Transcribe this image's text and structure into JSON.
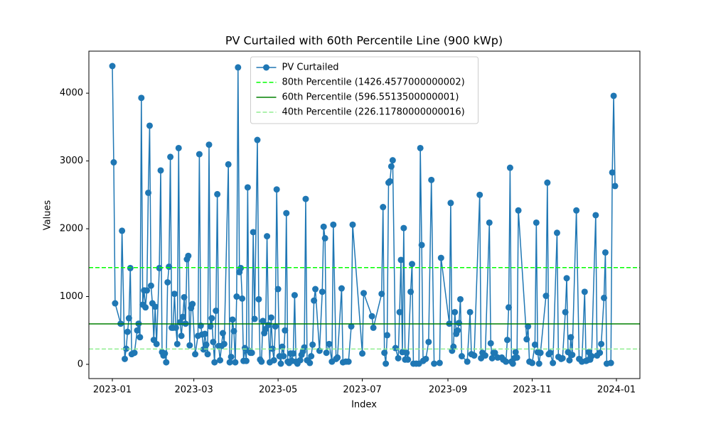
{
  "chart_data": {
    "type": "line",
    "title": "PV Curtailed with 60th Percentile Line (900 kWp)",
    "x_label": "Index",
    "y_label": "Values",
    "x": [
      "2023-01-01",
      "2023-01-02",
      "2023-01-03",
      "2023-01-07",
      "2023-01-08",
      "2023-01-10",
      "2023-01-11",
      "2023-01-12",
      "2023-01-13",
      "2023-01-14",
      "2023-01-15",
      "2023-01-17",
      "2023-01-19",
      "2023-01-20",
      "2023-01-21",
      "2023-01-22",
      "2023-01-23",
      "2023-01-24",
      "2023-01-25",
      "2023-01-26",
      "2023-01-27",
      "2023-01-28",
      "2023-01-29",
      "2023-01-30",
      "2023-01-31",
      "2023-02-01",
      "2023-02-02",
      "2023-02-04",
      "2023-02-05",
      "2023-02-06",
      "2023-02-07",
      "2023-02-08",
      "2023-02-09",
      "2023-02-10",
      "2023-02-11",
      "2023-02-12",
      "2023-02-13",
      "2023-02-14",
      "2023-02-15",
      "2023-02-16",
      "2023-02-17",
      "2023-02-18",
      "2023-02-19",
      "2023-02-20",
      "2023-02-21",
      "2023-02-22",
      "2023-02-23",
      "2023-02-24",
      "2023-02-25",
      "2023-02-26",
      "2023-02-27",
      "2023-02-28",
      "2023-03-02",
      "2023-03-04",
      "2023-03-05",
      "2023-03-06",
      "2023-03-07",
      "2023-03-08",
      "2023-03-09",
      "2023-03-10",
      "2023-03-11",
      "2023-03-12",
      "2023-03-13",
      "2023-03-14",
      "2023-03-15",
      "2023-03-16",
      "2023-03-17",
      "2023-03-18",
      "2023-03-19",
      "2023-03-20",
      "2023-03-21",
      "2023-03-22",
      "2023-03-23",
      "2023-03-26",
      "2023-03-27",
      "2023-03-28",
      "2023-03-29",
      "2023-03-30",
      "2023-03-31",
      "2023-04-01",
      "2023-04-02",
      "2023-04-03",
      "2023-04-04",
      "2023-04-05",
      "2023-04-06",
      "2023-04-07",
      "2023-04-08",
      "2023-04-09",
      "2023-04-10",
      "2023-04-11",
      "2023-04-12",
      "2023-04-13",
      "2023-04-14",
      "2023-04-16",
      "2023-04-17",
      "2023-04-18",
      "2023-04-19",
      "2023-04-20",
      "2023-04-21",
      "2023-04-22",
      "2023-04-23",
      "2023-04-24",
      "2023-04-25",
      "2023-04-26",
      "2023-04-27",
      "2023-04-28",
      "2023-04-29",
      "2023-04-30",
      "2023-05-01",
      "2023-05-02",
      "2023-05-03",
      "2023-05-04",
      "2023-05-05",
      "2023-05-06",
      "2023-05-07",
      "2023-05-08",
      "2023-05-09",
      "2023-05-10",
      "2023-05-11",
      "2023-05-12",
      "2023-05-13",
      "2023-05-14",
      "2023-05-15",
      "2023-05-17",
      "2023-05-18",
      "2023-05-19",
      "2023-05-20",
      "2023-05-21",
      "2023-05-22",
      "2023-05-24",
      "2023-05-25",
      "2023-05-26",
      "2023-05-27",
      "2023-05-28",
      "2023-05-31",
      "2023-06-02",
      "2023-06-03",
      "2023-06-04",
      "2023-06-05",
      "2023-06-07",
      "2023-06-09",
      "2023-06-10",
      "2023-06-12",
      "2023-06-13",
      "2023-06-16",
      "2023-06-17",
      "2023-06-19",
      "2023-06-21",
      "2023-06-23",
      "2023-06-24",
      "2023-07-01",
      "2023-07-02",
      "2023-07-08",
      "2023-07-09",
      "2023-07-15",
      "2023-07-16",
      "2023-07-17",
      "2023-07-18",
      "2023-07-19",
      "2023-07-20",
      "2023-07-21",
      "2023-07-22",
      "2023-07-23",
      "2023-07-25",
      "2023-07-27",
      "2023-07-28",
      "2023-07-29",
      "2023-07-30",
      "2023-07-31",
      "2023-08-01",
      "2023-08-02",
      "2023-08-03",
      "2023-08-05",
      "2023-08-06",
      "2023-08-07",
      "2023-08-09",
      "2023-08-11",
      "2023-08-12",
      "2023-08-13",
      "2023-08-14",
      "2023-08-16",
      "2023-08-18",
      "2023-08-20",
      "2023-08-22",
      "2023-08-26",
      "2023-08-27",
      "2023-09-02",
      "2023-09-03",
      "2023-09-04",
      "2023-09-05",
      "2023-09-06",
      "2023-09-07",
      "2023-09-08",
      "2023-09-09",
      "2023-09-10",
      "2023-09-11",
      "2023-09-15",
      "2023-09-17",
      "2023-09-18",
      "2023-09-20",
      "2023-09-24",
      "2023-09-25",
      "2023-09-26",
      "2023-09-28",
      "2023-10-01",
      "2023-10-02",
      "2023-10-03",
      "2023-10-04",
      "2023-10-05",
      "2023-10-07",
      "2023-10-10",
      "2023-10-11",
      "2023-10-13",
      "2023-10-14",
      "2023-10-15",
      "2023-10-16",
      "2023-10-17",
      "2023-10-18",
      "2023-10-19",
      "2023-10-20",
      "2023-10-21",
      "2023-10-22",
      "2023-10-28",
      "2023-10-29",
      "2023-10-30",
      "2023-11-01",
      "2023-11-03",
      "2023-11-04",
      "2023-11-05",
      "2023-11-06",
      "2023-11-07",
      "2023-11-11",
      "2023-11-12",
      "2023-11-13",
      "2023-11-14",
      "2023-11-16",
      "2023-11-19",
      "2023-11-20",
      "2023-11-22",
      "2023-11-23",
      "2023-11-25",
      "2023-11-26",
      "2023-11-27",
      "2023-11-28",
      "2023-11-29",
      "2023-11-30",
      "2023-12-03",
      "2023-12-05",
      "2023-12-07",
      "2023-12-09",
      "2023-12-10",
      "2023-12-11",
      "2023-12-12",
      "2023-12-13",
      "2023-12-14",
      "2023-12-17",
      "2023-12-18",
      "2023-12-20",
      "2023-12-21",
      "2023-12-23",
      "2023-12-24",
      "2023-12-25",
      "2023-12-28",
      "2023-12-29",
      "2023-12-30",
      "2023-12-31"
    ],
    "series": [
      {
        "name": "PV Curtailed",
        "color": "#1f77b4",
        "values": [
          4400,
          2980,
          900,
          600,
          1970,
          80,
          230,
          480,
          680,
          1420,
          150,
          170,
          500,
          600,
          400,
          3930,
          880,
          1090,
          840,
          1090,
          2530,
          3520,
          1160,
          900,
          360,
          850,
          300,
          1420,
          2860,
          180,
          130,
          160,
          30,
          1210,
          1440,
          3060,
          540,
          540,
          1040,
          540,
          300,
          3190,
          620,
          420,
          700,
          990,
          600,
          1550,
          1600,
          280,
          830,
          890,
          150,
          420,
          3100,
          570,
          440,
          220,
          450,
          290,
          150,
          3240,
          560,
          680,
          330,
          30,
          790,
          2510,
          270,
          60,
          270,
          460,
          300,
          2950,
          30,
          110,
          660,
          490,
          30,
          1000,
          4380,
          1360,
          1420,
          970,
          50,
          240,
          50,
          2610,
          200,
          170,
          170,
          1950,
          670,
          3310,
          960,
          70,
          40,
          640,
          460,
          520,
          1890,
          580,
          30,
          690,
          230,
          60,
          560,
          2580,
          1110,
          120,
          10,
          260,
          120,
          500,
          2230,
          40,
          20,
          160,
          50,
          160,
          1020,
          40,
          10,
          60,
          140,
          190,
          250,
          2440,
          60,
          20,
          120,
          290,
          940,
          1110,
          200,
          1070,
          2030,
          1860,
          170,
          300,
          40,
          2060,
          80,
          100,
          1120,
          30,
          40,
          40,
          560,
          2060,
          160,
          1050,
          710,
          540,
          1040,
          2320,
          170,
          10,
          430,
          2680,
          2700,
          2920,
          3010,
          240,
          90,
          770,
          1540,
          180,
          2010,
          70,
          170,
          70,
          1070,
          1480,
          10,
          10,
          10,
          3190,
          1760,
          50,
          80,
          330,
          2720,
          10,
          20,
          1570,
          600,
          2380,
          200,
          260,
          770,
          450,
          500,
          610,
          960,
          120,
          40,
          770,
          150,
          130,
          2500,
          90,
          170,
          130,
          2090,
          310,
          90,
          170,
          170,
          100,
          100,
          70,
          40,
          360,
          840,
          2900,
          40,
          10,
          90,
          180,
          100,
          2270,
          370,
          560,
          40,
          20,
          290,
          2090,
          180,
          10,
          170,
          1010,
          2680,
          150,
          170,
          20,
          1940,
          110,
          80,
          90,
          770,
          1270,
          180,
          60,
          400,
          140,
          2270,
          80,
          40,
          1070,
          50,
          60,
          180,
          70,
          120,
          2200,
          130,
          170,
          300,
          980,
          1650,
          10,
          20,
          2830,
          3960,
          2630
        ]
      }
    ],
    "hlines": [
      {
        "name": "80th Percentile (1426.4577000000002)",
        "value": 1426.4577000000002,
        "color": "#00ff00",
        "dash": true
      },
      {
        "name": "60th Percentile (596.5513500000001)",
        "value": 596.5513500000001,
        "color": "#008000",
        "dash": false
      },
      {
        "name": "40th Percentile (226.11780000000016)",
        "value": 226.11780000000016,
        "color": "#90ee90",
        "dash": true
      }
    ],
    "xlim": [
      "2022-12-15",
      "2024-01-18"
    ],
    "xticks": [
      {
        "value": "2023-01-01",
        "label": "2023-01"
      },
      {
        "value": "2023-03-01",
        "label": "2023-03"
      },
      {
        "value": "2023-05-01",
        "label": "2023-05"
      },
      {
        "value": "2023-07-01",
        "label": "2023-07"
      },
      {
        "value": "2023-09-01",
        "label": "2023-09"
      },
      {
        "value": "2023-11-01",
        "label": "2023-11"
      },
      {
        "value": "2024-01-01",
        "label": "2024-01"
      }
    ],
    "ylim": [
      -210,
      4620
    ],
    "yticks": [
      0,
      1000,
      2000,
      3000,
      4000
    ],
    "legend": "upper center"
  }
}
